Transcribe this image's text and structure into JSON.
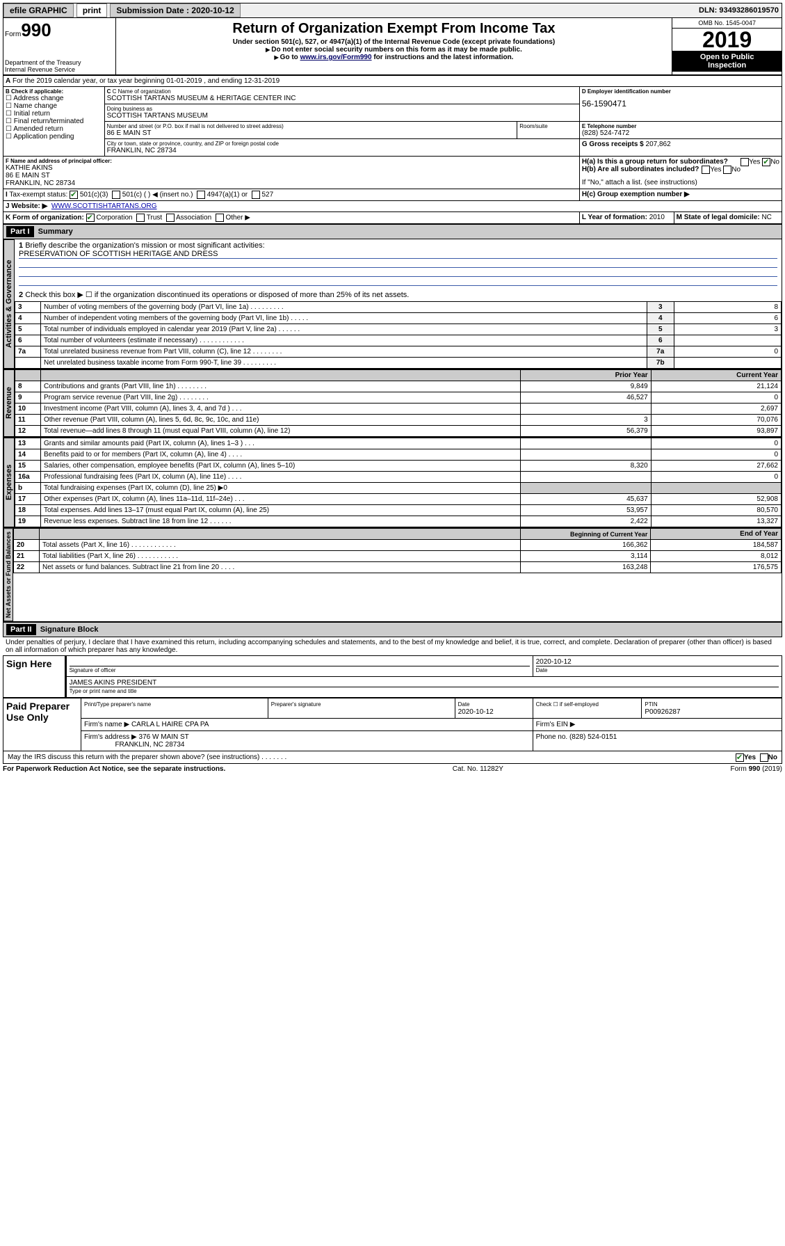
{
  "meta": {
    "efile_label": "efile GRAPHIC",
    "print_label": "print",
    "submission_label": "Submission Date : ",
    "submission_date": "2020-10-12",
    "dln_label": "DLN: ",
    "dln": "93493286019570",
    "form_prefix": "Form",
    "form_number": "990",
    "title": "Return of Organization Exempt From Income Tax",
    "subtitle": "Under section 501(c), 527, or 4947(a)(1) of the Internal Revenue Code (except private foundations)",
    "warn": "Do not enter social security numbers on this form as it may be made public.",
    "goto": "Go to ",
    "goto_link": "www.irs.gov/Form990",
    "goto_tail": " for instructions and the latest information.",
    "dept": "Department of the Treasury",
    "irs": "Internal Revenue Service",
    "omb_label": "OMB No. ",
    "omb": "1545-0047",
    "year": "2019",
    "inspect1": "Open to Public",
    "inspect2": "Inspection"
  },
  "periodA": "For the 2019 calendar year, or tax year beginning 01-01-2019   , and ending 12-31-2019",
  "boxB": {
    "label": "B Check if applicable:",
    "items": [
      "Address change",
      "Name change",
      "Initial return",
      "Final return/terminated",
      "Amended return",
      "Application pending"
    ]
  },
  "boxC": {
    "name_label": "C Name of organization",
    "name": "SCOTTISH TARTANS MUSEUM & HERITAGE CENTER INC",
    "dba_label": "Doing business as",
    "dba": "SCOTTISH TARTANS MUSEUM",
    "addr_label": "Number and street (or P.O. box if mail is not delivered to street address)",
    "room_label": "Room/suite",
    "addr": "86 E MAIN ST",
    "city_label": "City or town, state or province, country, and ZIP or foreign postal code",
    "city": "FRANKLIN, NC  28734"
  },
  "boxD": {
    "label": "D Employer identification number",
    "value": "56-1590471"
  },
  "boxE": {
    "label": "E Telephone number",
    "value": "(828) 524-7472"
  },
  "boxG": {
    "label": "G Gross receipts $ ",
    "value": "207,862"
  },
  "boxF": {
    "label": "F  Name and address of principal officer:",
    "name": "KATHIE AKINS",
    "addr1": "86 E MAIN ST",
    "addr2": "FRANKLIN, NC  28734"
  },
  "boxH": {
    "a": "H(a)  Is this a group return for subordinates?",
    "b": "H(b)  Are all subordinates included?",
    "note": "If \"No,\" attach a list. (see instructions)",
    "c": "H(c)  Group exemption number ▶",
    "yes": "Yes",
    "no": "No",
    "a_no_checked": true
  },
  "boxI": {
    "label": "Tax-exempt status:",
    "opts": [
      "501(c)(3)",
      "501(c) (  ) ◀ (insert no.)",
      "4947(a)(1) or",
      "527"
    ],
    "checked": 0
  },
  "boxJ": {
    "label": "Website: ▶",
    "value": "WWW.SCOTTISHTARTANS.ORG"
  },
  "boxK": {
    "label": "K Form of organization:",
    "opts": [
      "Corporation",
      "Trust",
      "Association",
      "Other ▶"
    ],
    "checked": 0
  },
  "boxL": {
    "label": "L Year of formation: ",
    "value": "2010"
  },
  "boxM": {
    "label": "M State of legal domicile: ",
    "value": "NC"
  },
  "part1": {
    "hdr": "Part I",
    "title": "Summary"
  },
  "summary": {
    "q1": "Briefly describe the organization's mission or most significant activities:",
    "mission": "PRESERVATION OF SCOTTISH HERITAGE AND DRESS",
    "q2": "Check this box ▶ ☐  if the organization discontinued its operations or disposed of more than 25% of its net assets.",
    "rows_top": [
      {
        "n": "3",
        "t": "Number of voting members of the governing body (Part VI, line 1a)  .    .    .    .    .    .    .    .    .",
        "c": "3",
        "v": "8"
      },
      {
        "n": "4",
        "t": "Number of independent voting members of the governing body (Part VI, line 1b)  .    .    .    .    .",
        "c": "4",
        "v": "6"
      },
      {
        "n": "5",
        "t": "Total number of individuals employed in calendar year 2019 (Part V, line 2a)  .    .    .    .    .    .",
        "c": "5",
        "v": "3"
      },
      {
        "n": "6",
        "t": "Total number of volunteers (estimate if necessary)  .    .    .    .    .    .    .    .    .    .    .    .",
        "c": "6",
        "v": ""
      },
      {
        "n": "7a",
        "t": "Total unrelated business revenue from Part VIII, column (C), line 12  .    .    .    .    .    .    .    .",
        "c": "7a",
        "v": "0"
      },
      {
        "n": "",
        "t": "Net unrelated business taxable income from Form 990-T, line 39  .    .    .    .    .    .    .    .    .",
        "c": "7b",
        "v": ""
      }
    ],
    "col_prior": "Prior Year",
    "col_current": "Current Year",
    "col_begin": "Beginning of Current Year",
    "col_end": "End of Year",
    "rev": [
      {
        "n": "8",
        "t": "Contributions and grants (Part VIII, line 1h)  .    .    .    .    .    .    .    .",
        "p": "9,849",
        "c": "21,124"
      },
      {
        "n": "9",
        "t": "Program service revenue (Part VIII, line 2g)  .    .    .    .    .    .    .    .",
        "p": "46,527",
        "c": "0"
      },
      {
        "n": "10",
        "t": "Investment income (Part VIII, column (A), lines 3, 4, and 7d )  .    .    .",
        "p": "",
        "c": "2,697"
      },
      {
        "n": "11",
        "t": "Other revenue (Part VIII, column (A), lines 5, 6d, 8c, 9c, 10c, and 11e)",
        "p": "3",
        "c": "70,076"
      },
      {
        "n": "12",
        "t": "Total revenue—add lines 8 through 11 (must equal Part VIII, column (A), line 12)",
        "p": "56,379",
        "c": "93,897"
      }
    ],
    "exp": [
      {
        "n": "13",
        "t": "Grants and similar amounts paid (Part IX, column (A), lines 1–3 )  .    .    .",
        "p": "",
        "c": "0"
      },
      {
        "n": "14",
        "t": "Benefits paid to or for members (Part IX, column (A), line 4)  .    .    .    .",
        "p": "",
        "c": "0"
      },
      {
        "n": "15",
        "t": "Salaries, other compensation, employee benefits (Part IX, column (A), lines 5–10)",
        "p": "8,320",
        "c": "27,662"
      },
      {
        "n": "16a",
        "t": "Professional fundraising fees (Part IX, column (A), line 11e)  .    .    .    .",
        "p": "",
        "c": "0"
      },
      {
        "n": "b",
        "t": "Total fundraising expenses (Part IX, column (D), line 25) ▶0",
        "p": "shade",
        "c": "shade"
      },
      {
        "n": "17",
        "t": "Other expenses (Part IX, column (A), lines 11a–11d, 11f–24e)  .    .    .",
        "p": "45,637",
        "c": "52,908"
      },
      {
        "n": "18",
        "t": "Total expenses. Add lines 13–17 (must equal Part IX, column (A), line 25)",
        "p": "53,957",
        "c": "80,570"
      },
      {
        "n": "19",
        "t": "Revenue less expenses. Subtract line 18 from line 12  .    .    .    .    .    .",
        "p": "2,422",
        "c": "13,327"
      }
    ],
    "net": [
      {
        "n": "20",
        "t": "Total assets (Part X, line 16)  .    .    .    .    .    .    .    .    .    .    .    .",
        "p": "166,362",
        "c": "184,587"
      },
      {
        "n": "21",
        "t": "Total liabilities (Part X, line 26)  .    .    .    .    .    .    .    .    .    .    .",
        "p": "3,114",
        "c": "8,012"
      },
      {
        "n": "22",
        "t": "Net assets or fund balances. Subtract line 21 from line 20  .    .    .    .",
        "p": "163,248",
        "c": "176,575"
      }
    ]
  },
  "sections": {
    "gov": "Activities & Governance",
    "rev": "Revenue",
    "exp": "Expenses",
    "net": "Net Assets or Fund Balances"
  },
  "part2": {
    "hdr": "Part II",
    "title": "Signature Block"
  },
  "sig": {
    "perjury": "Under penalties of perjury, I declare that I have examined this return, including accompanying schedules and statements, and to the best of my knowledge and belief, it is true, correct, and complete. Declaration of preparer (other than officer) is based on all information of which preparer has any knowledge.",
    "sign_here": "Sign Here",
    "sig_label": "Signature of officer",
    "date": "2020-10-12",
    "date_label": "Date",
    "name": "JAMES AKINS  PRESIDENT",
    "name_label": "Type or print name and title",
    "paid": "Paid Preparer Use Only",
    "prep_name_label": "Print/Type preparer's name",
    "prep_sig_label": "Preparer's signature",
    "prep_date": "2020-10-12",
    "check_self": "Check ☐ if self-employed",
    "ptin_label": "PTIN",
    "ptin": "P00926287",
    "firm_name_label": "Firm's name    ▶",
    "firm_name": "CARLA L HAIRE CPA PA",
    "firm_ein_label": "Firm's EIN ▶",
    "firm_addr_label": "Firm's address ▶",
    "firm_addr1": "376 W MAIN ST",
    "firm_addr2": "FRANKLIN, NC  28734",
    "phone_label": "Phone no. ",
    "phone": "(828) 524-0151",
    "discuss": "May the IRS discuss this return with the preparer shown above? (see instructions)   .     .     .     .     .     .     .",
    "yes": "Yes",
    "no": "No",
    "discuss_yes": true
  },
  "footer": {
    "left": "For Paperwork Reduction Act Notice, see the separate instructions.",
    "mid": "Cat. No. 11282Y",
    "right": "Form 990 (2019)"
  }
}
